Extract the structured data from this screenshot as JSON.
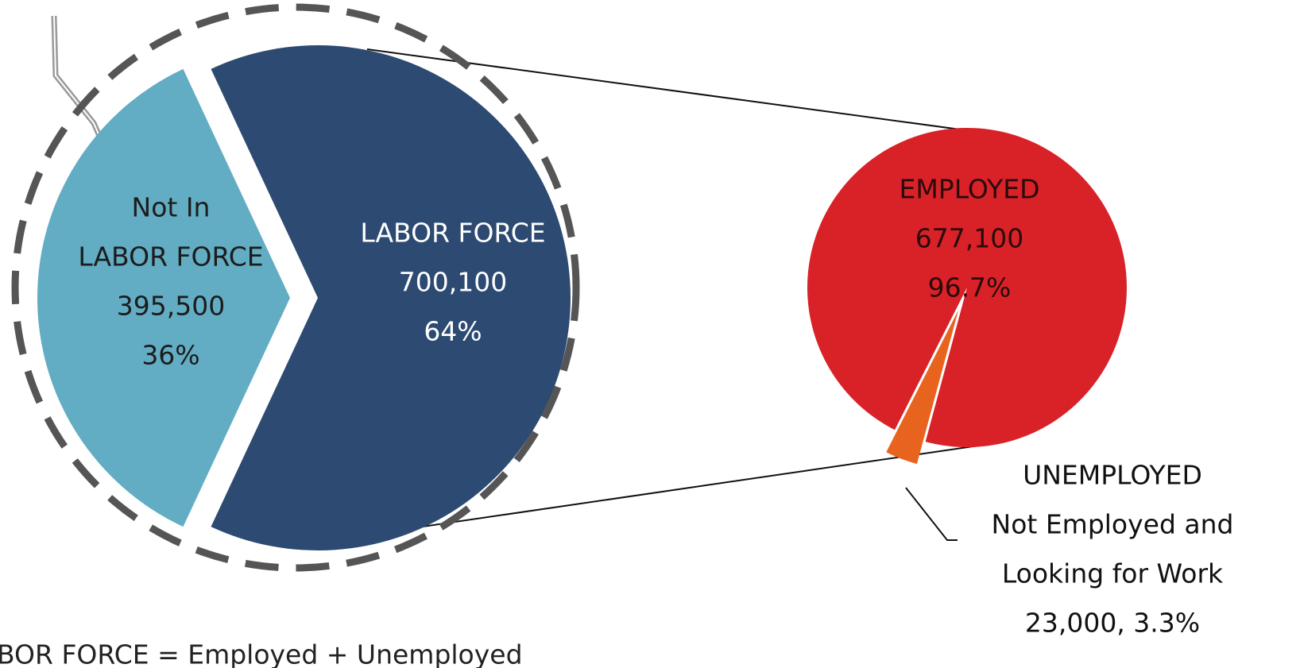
{
  "chart_data": [
    {
      "type": "pie",
      "categories": [
        [
          "Not In",
          "LABOR FORCE"
        ],
        [
          "LABOR FORCE"
        ]
      ],
      "values": [
        395500,
        700100
      ],
      "data_labels": [
        [
          "395,500",
          "36%"
        ],
        [
          "700,100",
          "64%"
        ]
      ],
      "colors": [
        "#62adc3",
        "#2d4a72"
      ]
    },
    {
      "type": "pie",
      "categories": [
        [
          "EMPLOYED"
        ],
        [
          "UNEMPLOYED",
          "Not Employed and",
          "Looking for Work"
        ]
      ],
      "values": [
        677100,
        23000
      ],
      "data_labels": [
        [
          "677,100",
          "96.7%"
        ],
        [
          "23,000, 3.3%"
        ]
      ],
      "colors": [
        "#d92128",
        "#e8641e"
      ]
    }
  ],
  "footnote": "BOR FORCE = Employed + Unemployed"
}
